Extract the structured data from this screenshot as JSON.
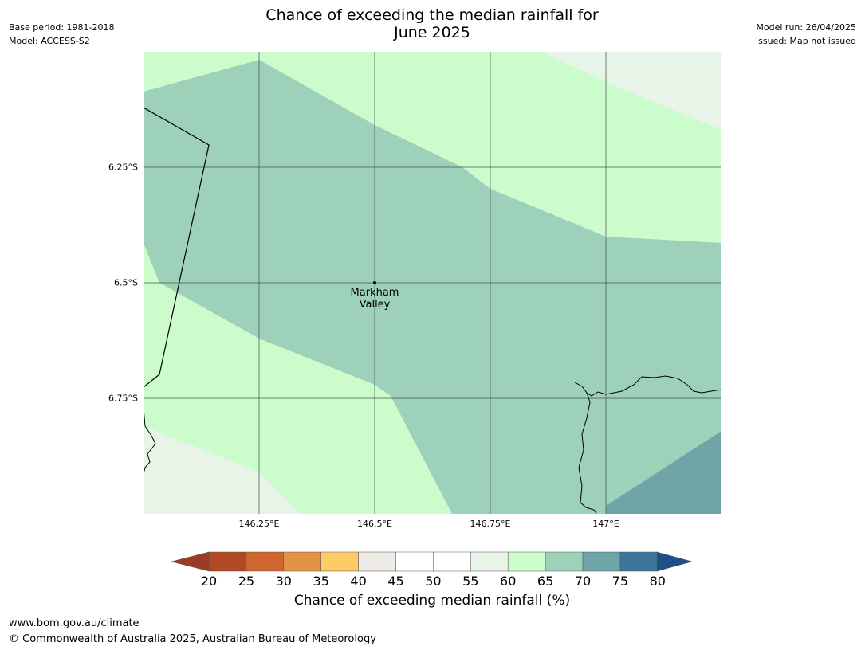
{
  "header": {
    "base_period": "Base period: 1981-2018",
    "model": "Model: ACCESS-S2",
    "model_run": "Model run: 26/04/2025",
    "issued": "Issued: Map not issued",
    "title_line1": "Chance of exceeding the median rainfall for",
    "title_line2": "June 2025"
  },
  "map": {
    "lat_labels": [
      "6.25°S",
      "6.5°S",
      "6.75°S"
    ],
    "lon_labels": [
      "146.25°E",
      "146.5°E",
      "146.75°E",
      "147°E"
    ],
    "place": {
      "name_line1": "Markham",
      "name_line2": "Valley"
    },
    "colors": {
      "c55_60": "#e8f4e8",
      "c60_65": "#ccfccc",
      "c65_70": "#9ed1b9",
      "c70_75": "#6fa5a7"
    }
  },
  "colorbar": {
    "ticks": [
      "20",
      "25",
      "30",
      "35",
      "40",
      "45",
      "50",
      "55",
      "60",
      "65",
      "70",
      "75",
      "80"
    ],
    "colors": [
      "#b04a25",
      "#cf6630",
      "#e39344",
      "#fecb66",
      "#eeeae6",
      "#ffffff",
      "#ffffff",
      "#e8f4e8",
      "#ccfccc",
      "#9ed1b9",
      "#6fa5a7",
      "#3d7698"
    ],
    "under_color": "#9b3b25",
    "over_color": "#1c5188",
    "label": "Chance of exceeding median rainfall (%)"
  },
  "footer": {
    "url": "www.bom.gov.au/climate",
    "copyright": "© Commonwealth of Australia 2025, Australian Bureau of Meteorology"
  }
}
